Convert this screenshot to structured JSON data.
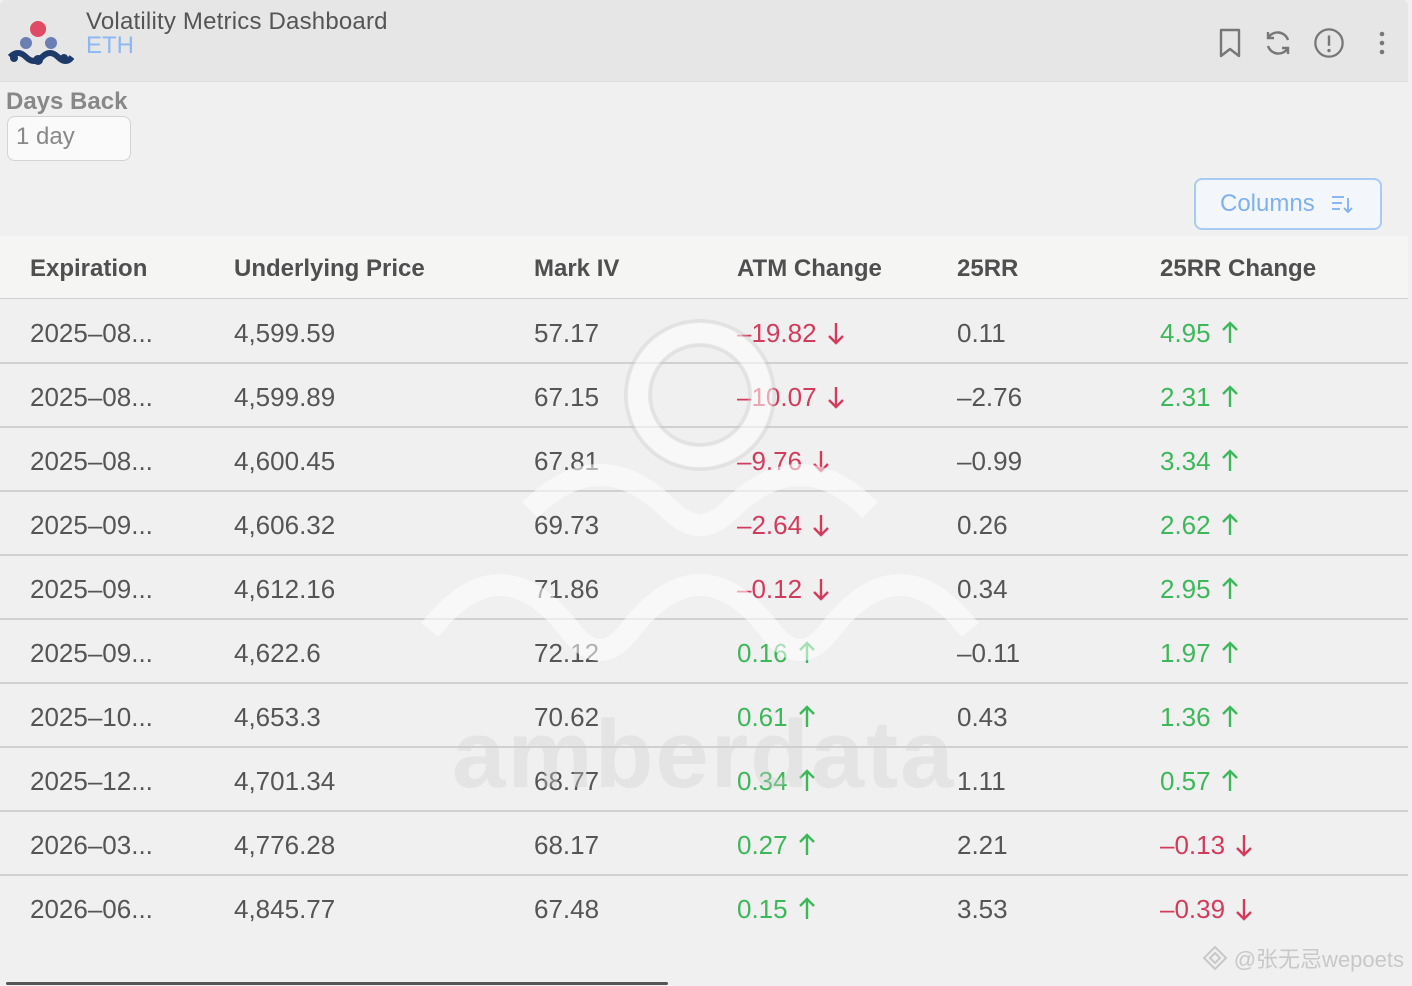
{
  "header": {
    "title": "Volatility Metrics Dashboard",
    "subtitle": "ETH",
    "icons": [
      "bookmark-icon",
      "refresh-icon",
      "info-icon",
      "more-icon"
    ]
  },
  "filters": {
    "days_back_label": "Days Back",
    "days_back_value": "1 day"
  },
  "toolbar": {
    "columns_label": "Columns"
  },
  "colors": {
    "negative": "#d23c5c",
    "positive": "#3cb85a",
    "accent": "#7fb1ef"
  },
  "table": {
    "columns": [
      "Expiration",
      "Underlying Price",
      "Mark IV",
      "ATM Change",
      "25RR",
      "25RR Change"
    ],
    "rows": [
      {
        "expiration": "2025–08...",
        "underlying": "4,599.59",
        "mark_iv": "57.17",
        "atm_change": "–19.82",
        "atm_dir": "down",
        "rr25": "0.11",
        "rr25_change": "4.95",
        "rr25_dir": "up"
      },
      {
        "expiration": "2025–08...",
        "underlying": "4,599.89",
        "mark_iv": "67.15",
        "atm_change": "–10.07",
        "atm_dir": "down",
        "rr25": "–2.76",
        "rr25_change": "2.31",
        "rr25_dir": "up"
      },
      {
        "expiration": "2025–08...",
        "underlying": "4,600.45",
        "mark_iv": "67.81",
        "atm_change": "–9.76",
        "atm_dir": "down",
        "rr25": "–0.99",
        "rr25_change": "3.34",
        "rr25_dir": "up"
      },
      {
        "expiration": "2025–09...",
        "underlying": "4,606.32",
        "mark_iv": "69.73",
        "atm_change": "–2.64",
        "atm_dir": "down",
        "rr25": "0.26",
        "rr25_change": "2.62",
        "rr25_dir": "up"
      },
      {
        "expiration": "2025–09...",
        "underlying": "4,612.16",
        "mark_iv": "71.86",
        "atm_change": "–0.12",
        "atm_dir": "down",
        "rr25": "0.34",
        "rr25_change": "2.95",
        "rr25_dir": "up"
      },
      {
        "expiration": "2025–09...",
        "underlying": "4,622.6",
        "mark_iv": "72.12",
        "atm_change": "0.16",
        "atm_dir": "up",
        "rr25": "–0.11",
        "rr25_change": "1.97",
        "rr25_dir": "up"
      },
      {
        "expiration": "2025–10...",
        "underlying": "4,653.3",
        "mark_iv": "70.62",
        "atm_change": "0.61",
        "atm_dir": "up",
        "rr25": "0.43",
        "rr25_change": "1.36",
        "rr25_dir": "up"
      },
      {
        "expiration": "2025–12...",
        "underlying": "4,701.34",
        "mark_iv": "68.77",
        "atm_change": "0.34",
        "atm_dir": "up",
        "rr25": "1.11",
        "rr25_change": "0.57",
        "rr25_dir": "up"
      },
      {
        "expiration": "2026–03...",
        "underlying": "4,776.28",
        "mark_iv": "68.17",
        "atm_change": "0.27",
        "atm_dir": "up",
        "rr25": "2.21",
        "rr25_change": "–0.13",
        "rr25_dir": "down"
      },
      {
        "expiration": "2026–06...",
        "underlying": "4,845.77",
        "mark_iv": "67.48",
        "atm_change": "0.15",
        "atm_dir": "up",
        "rr25": "3.53",
        "rr25_change": "–0.39",
        "rr25_dir": "down"
      }
    ]
  },
  "watermark": {
    "brand": "amberdata",
    "footer": "@张无忌wepoets"
  }
}
